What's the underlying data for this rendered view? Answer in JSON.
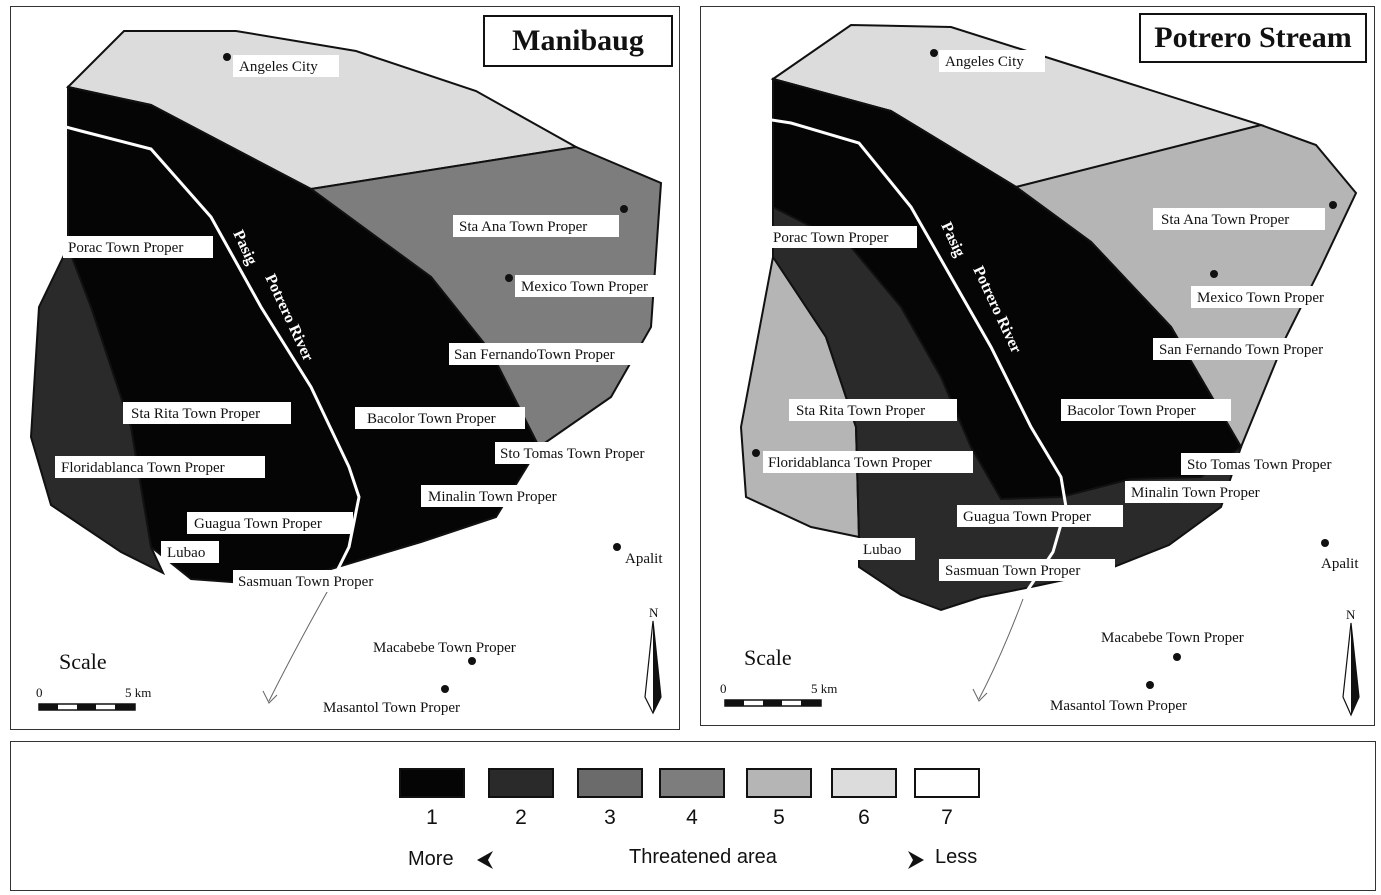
{
  "maps": [
    {
      "title": "Manibaug",
      "river_top": "Pasig",
      "river_bottom": "Potrero River",
      "places": [
        "Angeles City",
        "Porac Town Proper",
        "Sta Ana Town Proper",
        "Mexico Town Proper",
        "San FernandoTown Proper",
        "Sta Rita Town Proper",
        "Bacolor Town Proper",
        "Sto Tomas Town Proper",
        "Floridablanca Town Proper",
        "Minalin Town Proper",
        "Guagua Town Proper",
        "Lubao",
        "Apalit",
        "Sasmuan Town Proper",
        "Macabebe Town Proper",
        "Masantol Town Proper"
      ],
      "scale_label": "Scale",
      "scale_start": "0",
      "scale_end": "5 km",
      "north": "N"
    },
    {
      "title": "Potrero Stream",
      "river_top": "Pasig",
      "river_bottom": "Potrero River",
      "places": [
        "Angeles City",
        "Porac Town Proper",
        "Sta Ana Town Proper",
        "Mexico Town Proper",
        "San Fernando Town Proper",
        "Sta Rita Town Proper",
        "Bacolor Town Proper",
        "Floridablanca Town Proper",
        "Sto Tomas Town Proper",
        "Minalin Town Proper",
        "Guagua Town Proper",
        "Lubao",
        "Apalit",
        "Sasmuan Town Proper",
        "Macabebe Town Proper",
        "Masantol Town Proper"
      ],
      "scale_label": "Scale",
      "scale_start": "0",
      "scale_end": "5 km",
      "north": "N"
    }
  ],
  "legend": {
    "classes": [
      {
        "label": "1",
        "color": "#050505"
      },
      {
        "label": "2",
        "color": "#2a2a2a"
      },
      {
        "label": "3",
        "color": "#6b6b6b"
      },
      {
        "label": "4",
        "color": "#7d7d7d"
      },
      {
        "label": "5",
        "color": "#b5b5b5"
      },
      {
        "label": "6",
        "color": "#dcdcdc"
      },
      {
        "label": "7",
        "color": "#ffffff"
      }
    ],
    "more": "More",
    "title": "Threatened area",
    "less": "Less"
  }
}
